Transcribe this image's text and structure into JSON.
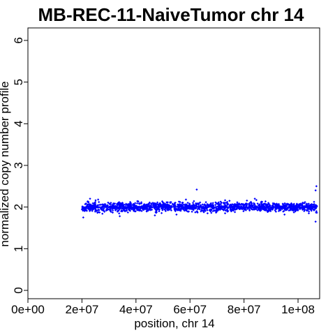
{
  "chart_data": {
    "type": "scatter",
    "title": "MB-REC-11-NaiveTumor chr 14",
    "xlabel": "position, chr 14",
    "ylabel": "normalized copy number profile",
    "xlim": [
      0,
      108000000
    ],
    "ylim": [
      -0.2,
      6.3
    ],
    "x_ticks": [
      0,
      20000000,
      40000000,
      60000000,
      80000000,
      100000000
    ],
    "x_tick_labels": [
      "0e+00",
      "2e+07",
      "4e+07",
      "6e+07",
      "8e+07",
      "1e+08"
    ],
    "y_ticks": [
      0,
      1,
      2,
      3,
      4,
      5,
      6
    ],
    "y_tick_labels": [
      "0",
      "1",
      "2",
      "3",
      "4",
      "5",
      "6"
    ],
    "grid": false,
    "series": [
      {
        "color": "#0000ff",
        "marker": "diamond",
        "x_range": [
          20000000,
          107000000
        ],
        "center": 2.0,
        "spread": 0.1,
        "outliers": [
          [
            20500000,
            1.75
          ],
          [
            23000000,
            2.2
          ],
          [
            26000000,
            2.18
          ],
          [
            34000000,
            1.78
          ],
          [
            47000000,
            1.8
          ],
          [
            55000000,
            1.82
          ],
          [
            58500000,
            2.18
          ],
          [
            62500000,
            2.42
          ],
          [
            66500000,
            1.85
          ],
          [
            73000000,
            1.85
          ],
          [
            84000000,
            2.2
          ],
          [
            95000000,
            1.82
          ],
          [
            104000000,
            1.85
          ],
          [
            106500000,
            1.65
          ],
          [
            106500000,
            2.4
          ],
          [
            106800000,
            2.5
          ]
        ]
      }
    ],
    "segments": [
      {
        "x_start": 20000000,
        "x_end": 107000000,
        "value": 2.0,
        "color": "#0000ff"
      }
    ]
  }
}
